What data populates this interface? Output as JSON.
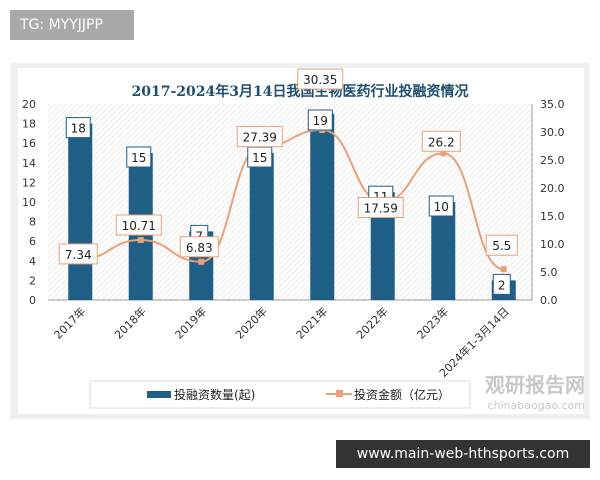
{
  "tag": "TG: MYYJJPP",
  "url": "www.main-web-hthsports.com",
  "watermark": {
    "cn": "观研报告网",
    "en": "chinabaogao.com"
  },
  "chart_data": {
    "type": "bar+line",
    "title": "2017-2024年3月14日我国生物医药行业投融资情况",
    "categories": [
      "2017年",
      "2018年",
      "2019年",
      "2020年",
      "2021年",
      "2022年",
      "2023年",
      "2024年1-3月14日"
    ],
    "series": [
      {
        "name": "投融资数量(起)",
        "type": "bar",
        "axis": "left",
        "color": "#1f5f85",
        "values": [
          18,
          15,
          7,
          15,
          19,
          11,
          10,
          2
        ]
      },
      {
        "name": "投资金额（亿元）",
        "type": "line",
        "axis": "right",
        "color": "#e8a07a",
        "values": [
          7.34,
          10.71,
          6.83,
          27.39,
          30.35,
          17.59,
          26.2,
          5.5
        ]
      }
    ],
    "ylim_left": [
      0,
      20
    ],
    "yticks_left": [
      "0",
      "2",
      "4",
      "6",
      "8",
      "10",
      "12",
      "14",
      "16",
      "18",
      "20"
    ],
    "ylim_right": [
      0,
      35
    ],
    "yticks_right": [
      "0.0",
      "5.0",
      "10.0",
      "15.0",
      "20.0",
      "25.0",
      "30.0",
      "35.0"
    ],
    "value_labels_line": [
      "7.34",
      "10.71",
      "6.83",
      "27.39",
      "30.35",
      "17.59",
      "26.2",
      "5.5"
    ],
    "legend": "bottom"
  }
}
